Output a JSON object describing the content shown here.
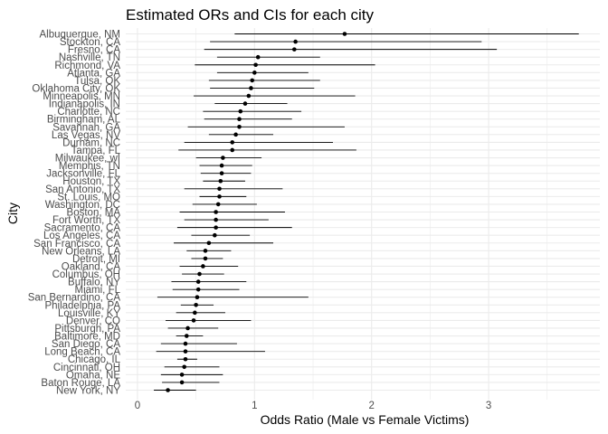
{
  "chart_data": {
    "type": "errorbar",
    "title": "Estimated ORs and CIs for each city",
    "xlabel": "Odds Ratio (Male vs Female Victims)",
    "ylabel": "City",
    "xlim": [
      -0.1,
      3.95
    ],
    "xticks": [
      0,
      1,
      2,
      3
    ],
    "grid": true,
    "point_color": "#000000",
    "line_color": "#000000",
    "grid_color": "#ebebeb",
    "categories": [
      "Albuquerque, NM",
      "Stockton, CA",
      "Fresno, CA",
      "Nashville, TN",
      "Richmond, VA",
      "Atlanta, GA",
      "Tulsa, OK",
      "Oklahoma City, OK",
      "Minneapolis, MN",
      "Indianapolis, IN",
      "Charlotte, NC",
      "Birmingham, AL",
      "Savannah, GA",
      "Las Vegas, NV",
      "Durham, NC",
      "Tampa, FL",
      "Milwaukee, wI",
      "Memphis, TN",
      "Jacksonville, FL",
      "Houston, TX",
      "San Antonio, TX",
      "St. Louis, MO",
      "Washington, DC",
      "Boston, MA",
      "Fort Worth, TX",
      "Sacramento, CA",
      "Los Angeles, CA",
      "San Francisco, CA",
      "New Orleans, LA",
      "Detroit, MI",
      "Oakland, CA",
      "Columbus, OH",
      "Buffalo, NY",
      "Miami, FL",
      "San Bernardino, CA",
      "Philadelphia, PA",
      "Louisville, KY",
      "Denver, CO",
      "Pittsburgh, PA",
      "Baltimore, MD",
      "San Diego, CA",
      "Long Beach, CA",
      "Chicago, IL",
      "Cincinnati, OH",
      "Omaha, NE",
      "Baton Rouge, LA",
      "New York, NY"
    ],
    "or": [
      1.77,
      1.35,
      1.34,
      1.03,
      1.01,
      1.0,
      0.98,
      0.97,
      0.95,
      0.92,
      0.88,
      0.87,
      0.87,
      0.84,
      0.81,
      0.81,
      0.73,
      0.72,
      0.72,
      0.71,
      0.7,
      0.7,
      0.69,
      0.67,
      0.67,
      0.67,
      0.66,
      0.61,
      0.58,
      0.58,
      0.56,
      0.53,
      0.52,
      0.52,
      0.51,
      0.5,
      0.49,
      0.48,
      0.43,
      0.42,
      0.41,
      0.41,
      0.41,
      0.4,
      0.38,
      0.38,
      0.26
    ],
    "lower": [
      0.83,
      0.62,
      0.57,
      0.68,
      0.49,
      0.68,
      0.61,
      0.62,
      0.48,
      0.66,
      0.56,
      0.57,
      0.43,
      0.61,
      0.4,
      0.35,
      0.5,
      0.53,
      0.54,
      0.56,
      0.4,
      0.53,
      0.47,
      0.36,
      0.4,
      0.34,
      0.46,
      0.31,
      0.42,
      0.46,
      0.36,
      0.38,
      0.29,
      0.3,
      0.17,
      0.37,
      0.33,
      0.24,
      0.26,
      0.33,
      0.2,
      0.16,
      0.34,
      0.23,
      0.2,
      0.21,
      0.14
    ],
    "upper": [
      3.77,
      2.94,
      3.07,
      1.56,
      2.03,
      1.46,
      1.56,
      1.51,
      1.86,
      1.28,
      1.4,
      1.32,
      1.77,
      1.16,
      1.67,
      1.87,
      1.06,
      0.98,
      0.97,
      0.92,
      1.24,
      0.93,
      1.02,
      1.26,
      1.12,
      1.32,
      0.96,
      1.16,
      0.8,
      0.73,
      0.86,
      0.74,
      0.93,
      0.87,
      1.46,
      0.65,
      0.75,
      0.97,
      0.69,
      0.56,
      0.85,
      1.09,
      0.51,
      0.7,
      0.73,
      0.7,
      0.5
    ]
  }
}
